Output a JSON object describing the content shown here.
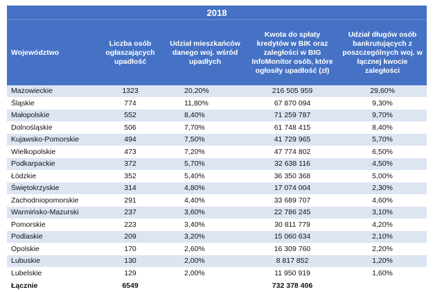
{
  "year": "2018",
  "columns": [
    "Województwo",
    "Liczba osób ogłaszających upadłość",
    "Udział mieszkańców danego woj. wśród upadłych",
    "Kwota do spłaty kredytów w BIK oraz zaległości w BIG InfoMonitor osób, które ogłosiły upadłość (zł)",
    "Udział długów osób bankrutujących z poszczególnych woj. w łącznej kwocie zaległości"
  ],
  "rows": [
    {
      "region": "Mazowieckie",
      "count": "1323",
      "share": "20,20%",
      "amount": "216 505 959",
      "debt_share": "29,60%"
    },
    {
      "region": "Śląskie",
      "count": "774",
      "share": "11,80%",
      "amount": "67 870 094",
      "debt_share": "9,30%"
    },
    {
      "region": "Małopolskie",
      "count": "552",
      "share": "8,40%",
      "amount": "71 259 787",
      "debt_share": "9,70%"
    },
    {
      "region": "Dolnośląskie",
      "count": "506",
      "share": "7,70%",
      "amount": "61 748 415",
      "debt_share": "8,40%"
    },
    {
      "region": "Kujawsko-Pomorskie",
      "count": "494",
      "share": "7,50%",
      "amount": "41 729 965",
      "debt_share": "5,70%"
    },
    {
      "region": "Wielkopolskie",
      "count": "473",
      "share": "7,20%",
      "amount": "47 774 802",
      "debt_share": "6,50%"
    },
    {
      "region": "Podkarpackie",
      "count": "372",
      "share": "5,70%",
      "amount": "32 638 116",
      "debt_share": "4,50%"
    },
    {
      "region": "Łódzkie",
      "count": "352",
      "share": "5,40%",
      "amount": "36 350 368",
      "debt_share": "5,00%"
    },
    {
      "region": "Świętokrzyskie",
      "count": "314",
      "share": "4,80%",
      "amount": "17 074 004",
      "debt_share": "2,30%"
    },
    {
      "region": "Zachodniopomorskie",
      "count": "291",
      "share": "4,40%",
      "amount": "33 689 707",
      "debt_share": "4,60%"
    },
    {
      "region": "Warmińsko-Mazurski",
      "count": "237",
      "share": "3,60%",
      "amount": "22 786 245",
      "debt_share": "3,10%"
    },
    {
      "region": "Pomorskie",
      "count": "223",
      "share": "3,40%",
      "amount": "30 811 779",
      "debt_share": "4,20%"
    },
    {
      "region": "Podlaskie",
      "count": "209",
      "share": "3,20%",
      "amount": "15 060 634",
      "debt_share": "2,10%"
    },
    {
      "region": "Opolskie",
      "count": "170",
      "share": "2,60%",
      "amount": "16 309 760",
      "debt_share": "2,20%"
    },
    {
      "region": "Lubuskie",
      "count": "130",
      "share": "2,00%",
      "amount": "8 817 852",
      "debt_share": "1,20%"
    },
    {
      "region": "Lubelskie",
      "count": "129",
      "share": "2,00%",
      "amount": "11 950 919",
      "debt_share": "1,60%"
    }
  ],
  "total": {
    "label": "Łącznie",
    "count": "6549",
    "amount": "732 378 406"
  },
  "colors": {
    "header_bg": "#4572c4",
    "header_text": "#ffffff",
    "stripe": "#dde5f3"
  }
}
